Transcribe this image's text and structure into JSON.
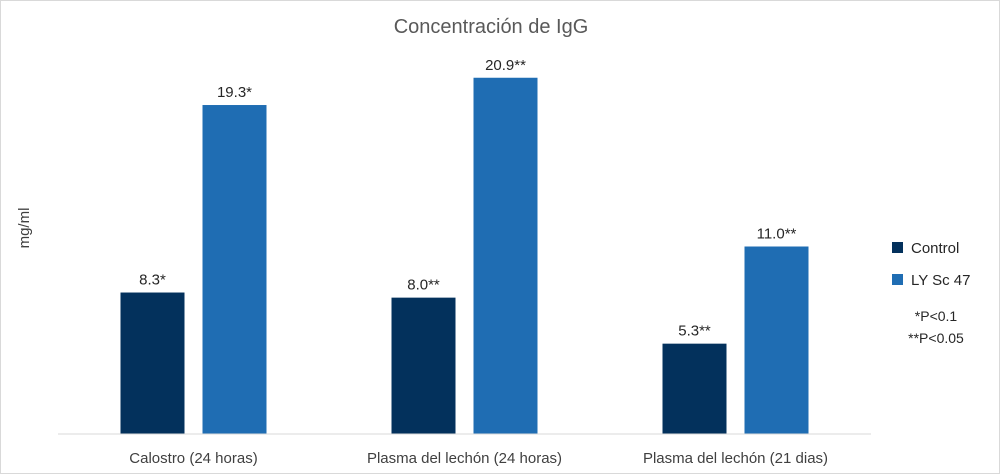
{
  "chart_data": {
    "type": "bar",
    "title": "Concentración de IgG",
    "xlabel": "",
    "ylabel": "mg/ml",
    "ylim": [
      0,
      22
    ],
    "grid": false,
    "legend_position": "right",
    "categories": [
      "Calostro (24 horas)",
      "Plasma del lechón (24 horas)",
      "Plasma del lechón (21 dias)"
    ],
    "series": [
      {
        "name": "Control",
        "color": "#03315c",
        "values": [
          8.3,
          8.0,
          5.3
        ],
        "labels": [
          "8.3*",
          "8.0**",
          "5.3**"
        ]
      },
      {
        "name": "LY Sc 47",
        "color": "#1f6db3",
        "values": [
          19.3,
          20.9,
          11.0
        ],
        "labels": [
          "19.3*",
          "20.9**",
          "11.0**"
        ]
      }
    ],
    "annotations": [
      "*P<0.1",
      "**P<0.05"
    ]
  }
}
